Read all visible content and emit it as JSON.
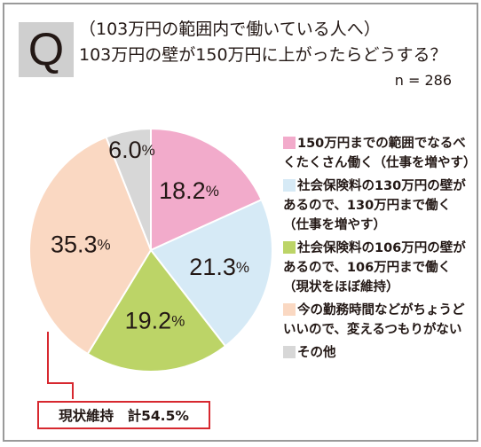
{
  "question": {
    "marker": "Q",
    "line1": "（103万円の範囲内で働いている人へ）",
    "line2": "103万円の壁が150万円に上がったらどうする？",
    "sample_size": "n = 286"
  },
  "chart_data": {
    "type": "pie",
    "unit": "%",
    "start_angle_deg": 0,
    "direction": "clockwise",
    "slices": [
      {
        "label": "150万円までの範囲でなるべくたくさん働く（仕事を増やす）",
        "value": 18.2,
        "value_text": "18.2",
        "color": "#f2abcb"
      },
      {
        "label": "社会保険料の130万円の壁があるので、130万円まで働く（仕事を増やす）",
        "value": 21.3,
        "value_text": "21.3",
        "color": "#d6eaf6"
      },
      {
        "label": "社会保険料の106万円の壁があるので、106万円まで働く（現状をほぼ維持）",
        "value": 19.2,
        "value_text": "19.2",
        "color": "#bcd467"
      },
      {
        "label": "今の勤務時間などがちょうどいいので、変えるつもりがない",
        "value": 35.3,
        "value_text": "35.3",
        "color": "#fad8c2"
      },
      {
        "label": "その他",
        "value": 6.0,
        "value_text": "6.0",
        "color": "#d7d7d7"
      }
    ],
    "legend_position": "right"
  },
  "annotation": {
    "total_label": "現状維持　計54.5%",
    "accent_color": "#d7282f"
  }
}
